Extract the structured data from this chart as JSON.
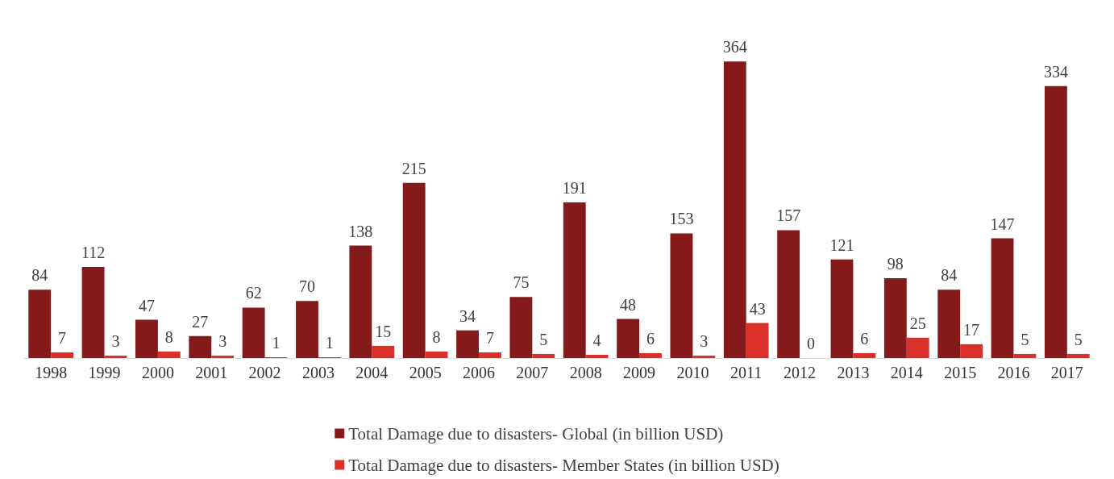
{
  "chart_data": {
    "type": "bar",
    "categories": [
      "1998",
      "1999",
      "2000",
      "2001",
      "2002",
      "2003",
      "2004",
      "2005",
      "2006",
      "2007",
      "2008",
      "2009",
      "2010",
      "2011",
      "2012",
      "2013",
      "2014",
      "2015",
      "2016",
      "2017"
    ],
    "series": [
      {
        "name": "Total Damage due to disasters- Global (in billion USD)",
        "color": "#841a1a",
        "values": [
          84,
          112,
          47,
          27,
          62,
          70,
          138,
          215,
          34,
          75,
          191,
          48,
          153,
          364,
          157,
          121,
          98,
          84,
          147,
          334
        ]
      },
      {
        "name": "Total Damage due to disasters- Member States (in billion USD)",
        "color": "#d9302a",
        "values": [
          7,
          3,
          8,
          3,
          1,
          1,
          15,
          8,
          7,
          5,
          4,
          6,
          3,
          43,
          0,
          6,
          25,
          17,
          5,
          5
        ]
      }
    ],
    "data_labels": true,
    "legend": "bottom"
  }
}
